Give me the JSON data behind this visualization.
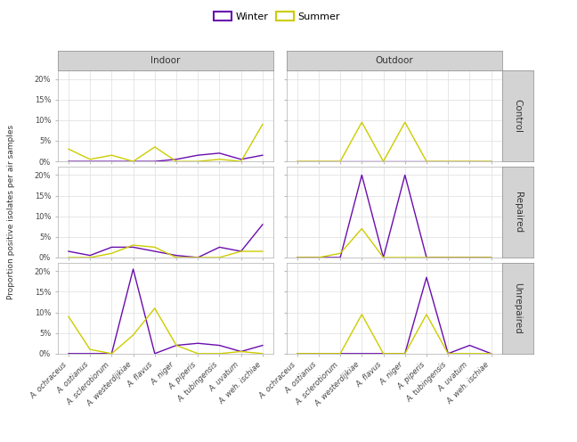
{
  "species": [
    "A. ochraceus",
    "A. ostianus",
    "A. sclerotiorum",
    "A. westerdijkiae",
    "A. flavus",
    "A. niger",
    "A. piperis",
    "A. tubingensis",
    "A. uvatum",
    "A. weh. ischiae"
  ],
  "location_labels": [
    "Indoor",
    "Outdoor"
  ],
  "row_labels": [
    "Control",
    "Repaired",
    "Unrepaired"
  ],
  "winter_color": "#6a0dad",
  "summer_color": "#cccc00",
  "panel_bg": "#ffffff",
  "grid_color": "#dddddd",
  "data": {
    "Control": {
      "Indoor": {
        "winter": [
          0,
          0,
          0,
          0,
          0,
          0.5,
          1.5,
          2.0,
          0.5,
          1.5
        ],
        "summer": [
          3.0,
          0.5,
          1.5,
          0,
          3.5,
          0,
          0,
          0.5,
          0,
          9.0
        ]
      },
      "Outdoor": {
        "winter": [
          0,
          0,
          0,
          0,
          0,
          0,
          0,
          0,
          0,
          0
        ],
        "summer": [
          0,
          0,
          0,
          9.5,
          0,
          9.5,
          0,
          0,
          0,
          0
        ]
      }
    },
    "Repaired": {
      "Indoor": {
        "winter": [
          1.5,
          0.5,
          2.5,
          2.5,
          1.5,
          0.5,
          0,
          2.5,
          1.5,
          8.0
        ],
        "summer": [
          0,
          0,
          1.0,
          3.0,
          2.5,
          0,
          0,
          0,
          1.5,
          1.5
        ]
      },
      "Outdoor": {
        "winter": [
          0,
          0,
          0,
          20.0,
          0,
          20.0,
          0,
          0,
          0,
          0
        ],
        "summer": [
          0,
          0,
          1.0,
          7.0,
          0,
          0,
          0,
          0,
          0,
          0
        ]
      }
    },
    "Unrepaired": {
      "Indoor": {
        "winter": [
          0,
          0,
          0,
          20.5,
          0,
          2.0,
          2.5,
          2.0,
          0.5,
          2.0
        ],
        "summer": [
          9.0,
          1.0,
          0,
          4.5,
          11.0,
          2.0,
          0,
          0,
          0.5,
          0
        ]
      },
      "Outdoor": {
        "winter": [
          0,
          0,
          0,
          0,
          0,
          0,
          18.5,
          0,
          2.0,
          0
        ],
        "summer": [
          0,
          0,
          0,
          9.5,
          0,
          0,
          9.5,
          0,
          0,
          0
        ]
      }
    }
  },
  "ylim": [
    0,
    22
  ],
  "yticks": [
    0,
    5,
    10,
    15,
    20
  ],
  "ytick_labels": [
    "0%",
    "5%",
    "10%",
    "15%",
    "20%"
  ],
  "ylabel": "Proportion positive isolates per air samples",
  "axis_fontsize": 6.5,
  "tick_label_fontsize": 6,
  "strip_bg": "#d3d3d3",
  "strip_text_fontsize": 7.5,
  "legend_fontsize": 8,
  "linewidth": 1.0
}
